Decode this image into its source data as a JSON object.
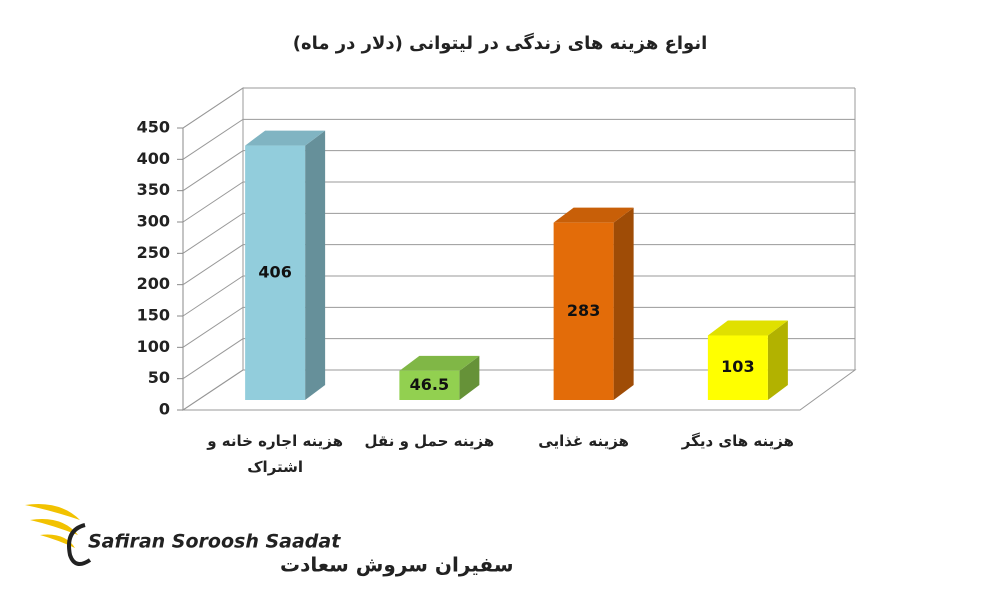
{
  "chart_data": {
    "type": "bar3d",
    "title": "انواع هزینه های زندگی در لیتوانی (دلار در ماه)",
    "categories": [
      "هزینه اجاره خانه و اشتراک",
      "هزینه حمل و نقل",
      "هزینه غذایی",
      "هزینه های دیگر"
    ],
    "values": [
      406,
      46.5,
      283,
      103
    ],
    "colors": [
      "#92cddc",
      "#92d050",
      "#e36c09",
      "#ffff00"
    ],
    "ylim": [
      0,
      450
    ],
    "yticks": [
      0,
      50,
      100,
      150,
      200,
      250,
      300,
      350,
      400,
      450
    ],
    "grid": true
  },
  "logo": {
    "latin": "Safiran Soroosh Saadat",
    "persian": "سفیران سروش سعادت"
  }
}
